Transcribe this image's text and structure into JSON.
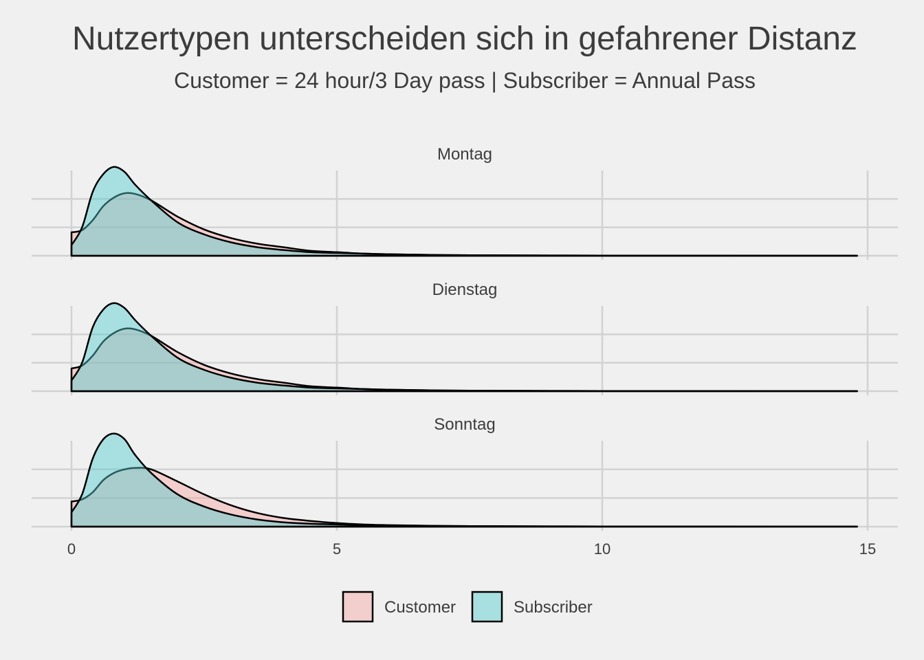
{
  "chart_data": {
    "type": "area",
    "subtype": "density-facets",
    "title": "Nutzertypen unterscheiden sich in gefahrener Distanz",
    "subtitle": "Customer = 24 hour/3 Day pass  | Subscriber = Annual Pass",
    "xlabel": "",
    "ylabel": "",
    "xlim": [
      0,
      15
    ],
    "x_ticks": [
      0,
      5,
      10,
      15
    ],
    "ylim": [
      0,
      1.2
    ],
    "legend_position": "bottom",
    "colors": {
      "Customer": "#f3a3a1",
      "Subscriber": "#4fc9cc"
    },
    "x": [
      0,
      0.2,
      0.4,
      0.6,
      0.8,
      1.0,
      1.2,
      1.5,
      2.0,
      2.5,
      3.0,
      3.5,
      4.0,
      4.5,
      5.0,
      5.5,
      6.0,
      7.0,
      8.0,
      9.0,
      10.0,
      12.0,
      14.8
    ],
    "facets": [
      {
        "name": "Montag",
        "series": [
          {
            "name": "Customer",
            "values": [
              0.33,
              0.36,
              0.5,
              0.7,
              0.82,
              0.88,
              0.87,
              0.78,
              0.55,
              0.37,
              0.25,
              0.17,
              0.12,
              0.07,
              0.05,
              0.03,
              0.02,
              0.01,
              0.006,
              0.004,
              0.003,
              0.002,
              0.001
            ]
          },
          {
            "name": "Subscriber",
            "values": [
              0.15,
              0.4,
              0.9,
              1.15,
              1.25,
              1.18,
              1.0,
              0.78,
              0.47,
              0.3,
              0.19,
              0.12,
              0.08,
              0.05,
              0.04,
              0.03,
              0.02,
              0.01,
              0.006,
              0.004,
              0.003,
              0.002,
              0.001
            ]
          }
        ]
      },
      {
        "name": "Dienstag",
        "series": [
          {
            "name": "Customer",
            "values": [
              0.32,
              0.36,
              0.5,
              0.7,
              0.82,
              0.88,
              0.87,
              0.78,
              0.55,
              0.37,
              0.25,
              0.17,
              0.12,
              0.07,
              0.05,
              0.03,
              0.02,
              0.01,
              0.006,
              0.004,
              0.003,
              0.002,
              0.001
            ]
          },
          {
            "name": "Subscriber",
            "values": [
              0.15,
              0.4,
              0.9,
              1.15,
              1.24,
              1.17,
              1.0,
              0.78,
              0.47,
              0.3,
              0.19,
              0.12,
              0.08,
              0.05,
              0.04,
              0.03,
              0.02,
              0.01,
              0.006,
              0.004,
              0.003,
              0.002,
              0.001
            ]
          }
        ]
      },
      {
        "name": "Sonntag",
        "series": [
          {
            "name": "Customer",
            "values": [
              0.35,
              0.38,
              0.48,
              0.65,
              0.75,
              0.8,
              0.82,
              0.8,
              0.63,
              0.45,
              0.3,
              0.19,
              0.12,
              0.08,
              0.05,
              0.03,
              0.02,
              0.01,
              0.006,
              0.004,
              0.003,
              0.002,
              0.001
            ]
          },
          {
            "name": "Subscriber",
            "values": [
              0.2,
              0.45,
              0.95,
              1.22,
              1.3,
              1.22,
              1.0,
              0.75,
              0.45,
              0.28,
              0.17,
              0.1,
              0.06,
              0.04,
              0.03,
              0.02,
              0.015,
              0.01,
              0.006,
              0.004,
              0.003,
              0.002,
              0.001
            ]
          }
        ]
      }
    ]
  }
}
